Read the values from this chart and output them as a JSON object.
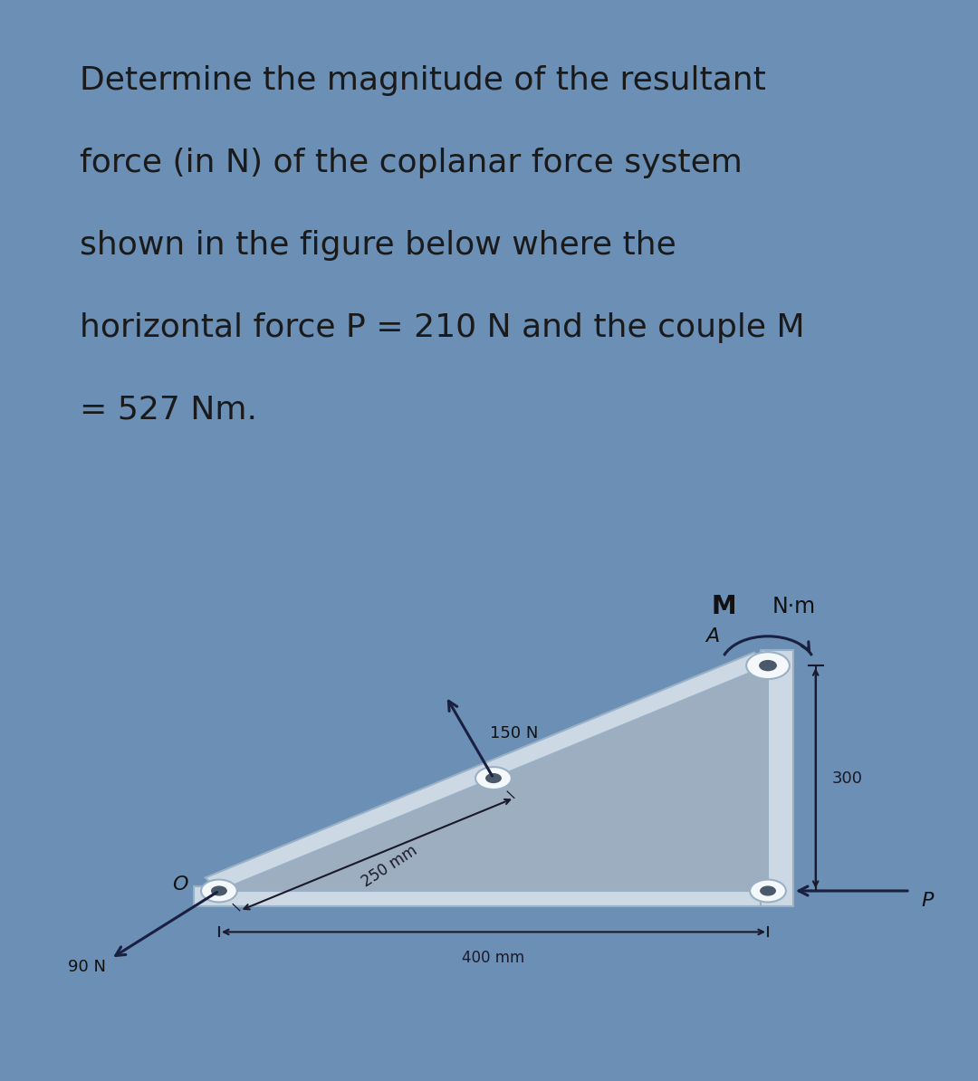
{
  "bg_outer": "#6b8fb5",
  "bg_text_panel": "#dde8f2",
  "bg_diagram_panel": "#f5f8fa",
  "title_lines": [
    "Determine the magnitude of the resultant",
    "force (in N) of the coplanar force system",
    "shown in the figure below where the",
    "horizontal force P = 210 N and the couple M",
    "= 527 Nm."
  ],
  "title_fontsize": 26,
  "title_color": "#1a1a1a",
  "body_fill": "#9daec0",
  "body_edge": "#b8c8d8",
  "flange_fill": "#ccd8e4",
  "flange_edge": "#9ab0c4",
  "label_M": "M",
  "label_Nm": "N·m",
  "label_A": "A",
  "label_150N": "150 N",
  "label_250mm": "250 mm",
  "label_300": "300",
  "label_400mm": "400 mm",
  "label_P": "P",
  "label_O": "O",
  "label_90N": "90 N",
  "arrow_color": "#1a2040",
  "dim_color": "#1a1a2a"
}
